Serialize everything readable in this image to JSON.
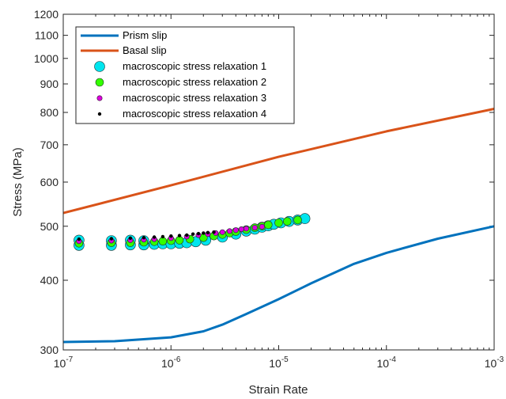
{
  "chart_data": {
    "type": "line",
    "xlabel": "Strain Rate",
    "ylabel": "Stress (MPa)",
    "xscale": "log",
    "yscale": "log",
    "xlim": [
      1e-07,
      0.001
    ],
    "ylim": [
      300,
      1200
    ],
    "x_ticks": [
      {
        "value": 1e-07,
        "base": "10",
        "exp": "-7"
      },
      {
        "value": 1e-06,
        "base": "10",
        "exp": "-6"
      },
      {
        "value": 1e-05,
        "base": "10",
        "exp": "-5"
      },
      {
        "value": 0.0001,
        "base": "10",
        "exp": "-4"
      },
      {
        "value": 0.001,
        "base": "10",
        "exp": "-3"
      }
    ],
    "y_ticks": [
      300,
      400,
      500,
      600,
      700,
      800,
      900,
      1000,
      1100,
      1200
    ],
    "legend_position": "top-left",
    "series": [
      {
        "name": "Prism slip",
        "kind": "line",
        "color": "#0072BD",
        "x": [
          1e-07,
          3e-07,
          1e-06,
          2e-06,
          3e-06,
          5e-06,
          1e-05,
          2e-05,
          5e-05,
          0.0001,
          0.0003,
          0.001
        ],
        "y": [
          310,
          311,
          316,
          324,
          333,
          348,
          370,
          395,
          428,
          448,
          475,
          500
        ]
      },
      {
        "name": "Basal slip",
        "kind": "line",
        "color": "#D95319",
        "x": [
          1e-07,
          1e-06,
          1e-05,
          0.0001,
          0.001
        ],
        "y": [
          528,
          592,
          666,
          740,
          812
        ]
      },
      {
        "name": "macroscopic stress relaxation 1",
        "kind": "scatter",
        "color": "#00E5EE",
        "size": 6.5,
        "x": [
          1.4e-07,
          1.4e-07,
          2.8e-07,
          2.8e-07,
          4.2e-07,
          4.2e-07,
          5.6e-07,
          5.6e-07,
          7e-07,
          8.4e-07,
          1e-06,
          1.2e-06,
          1.4e-06,
          1.7e-06,
          2.1e-06,
          3e-06,
          4e-06,
          5e-06,
          6e-06,
          7e-06,
          8e-06,
          9e-06,
          1.05e-05,
          1.25e-05,
          1.5e-05,
          1.75e-05
        ],
        "y": [
          462,
          472,
          462,
          471,
          463,
          472,
          463,
          471,
          464,
          465,
          465,
          466,
          467,
          469,
          472,
          478,
          484,
          490,
          494,
          498,
          501,
          504,
          507,
          510,
          513,
          516
        ]
      },
      {
        "name": "macroscopic stress relaxation 2",
        "kind": "scatter",
        "color": "#33FF00",
        "size": 5,
        "x": [
          1.4e-07,
          2.8e-07,
          4.2e-07,
          5.6e-07,
          7e-07,
          8.4e-07,
          1e-06,
          1.2e-06,
          1.5e-06,
          2e-06,
          2.5e-06,
          3e-06,
          3.5e-06,
          4e-06,
          5e-06,
          6e-06,
          7e-06,
          8e-06,
          1e-05,
          1.2e-05,
          1.5e-05
        ],
        "y": [
          466,
          467,
          467,
          468,
          469,
          470,
          471,
          472,
          474,
          477,
          480,
          483,
          486,
          489,
          493,
          497,
          500,
          503,
          507,
          510,
          513
        ]
      },
      {
        "name": "macroscopic stress relaxation 3",
        "kind": "scatter",
        "color": "#DD00DD",
        "size": 3.2,
        "x": [
          1.4e-07,
          2.8e-07,
          4.2e-07,
          5.6e-07,
          7e-07,
          1e-06,
          1.4e-06,
          1.8e-06,
          2.2e-06,
          2.6e-06,
          3e-06,
          3.5e-06,
          4e-06,
          4.5e-06,
          5e-06,
          6e-06,
          7e-06
        ],
        "y": [
          470,
          471,
          472,
          473,
          474,
          476,
          479,
          482,
          484,
          486,
          488,
          490,
          492,
          494,
          495,
          497,
          499
        ]
      },
      {
        "name": "macroscopic stress relaxation 4",
        "kind": "scatter",
        "color": "#000000",
        "size": 2.2,
        "x": [
          1.4e-07,
          2.8e-07,
          4.2e-07,
          5.6e-07,
          7e-07,
          8.4e-07,
          1e-06,
          1.2e-06,
          1.4e-06,
          1.6e-06,
          1.8e-06,
          2e-06,
          2.2e-06,
          2.5e-06
        ],
        "y": [
          474,
          475,
          476,
          477,
          478,
          479,
          480,
          481,
          482,
          484,
          485,
          486,
          487,
          488
        ]
      }
    ]
  }
}
